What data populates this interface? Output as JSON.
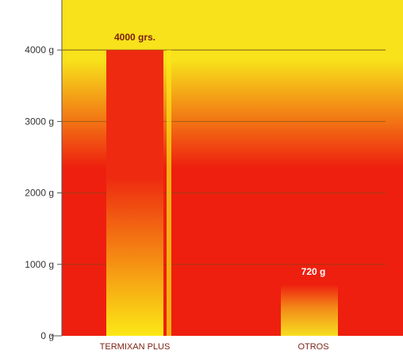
{
  "chart_data": {
    "type": "bar",
    "categories": [
      "TERMIXAN PLUS",
      "OTROS"
    ],
    "values": [
      4000,
      720
    ],
    "data_labels": [
      "4000 grs.",
      "720 g"
    ],
    "yticks": [
      {
        "value": 0,
        "label": "0 g"
      },
      {
        "value": 1000,
        "label": "1000 g"
      },
      {
        "value": 2000,
        "label": "2000 g"
      },
      {
        "value": 3000,
        "label": "3000 g"
      },
      {
        "value": 4000,
        "label": "4000 g"
      }
    ],
    "ylim": [
      0,
      4700
    ],
    "grid": true,
    "colors": {
      "background_top": "#f7e21b",
      "background_bottom": "#ee1f0f",
      "bar_top": "#ee2b10",
      "bar_bottom": "#fbe816",
      "otros_fade": "#f7df1f",
      "gridline": "#6b4a1a",
      "text": "#7a1f12",
      "axis": "#555555"
    }
  }
}
